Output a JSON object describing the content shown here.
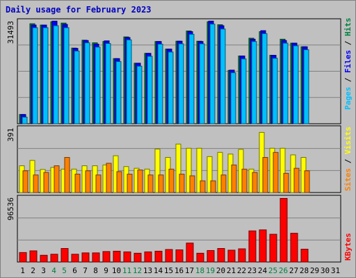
{
  "title": "Daily usage for February 2023",
  "chart_data": {
    "type": "bar",
    "days": [
      "1",
      "2",
      "3",
      "4",
      "5",
      "6",
      "7",
      "8",
      "9",
      "10",
      "11",
      "12",
      "13",
      "14",
      "15",
      "16",
      "17",
      "18",
      "19",
      "20",
      "21",
      "22",
      "23",
      "24",
      "25",
      "26",
      "27",
      "28",
      "29",
      "30",
      "31"
    ],
    "weekend_days": [
      "4",
      "5",
      "11",
      "12",
      "18",
      "19",
      "25",
      "26"
    ],
    "panels": [
      {
        "name": "hits-files-pages",
        "ymax_label": "31493",
        "ymax": 31493,
        "legend": [
          {
            "text": "Hits",
            "color": "#008040"
          },
          {
            "sep": "/"
          },
          {
            "text": "Files",
            "color": "#0000ff"
          },
          {
            "sep": "/"
          },
          {
            "text": "Pages",
            "color": "#00c0ff"
          }
        ],
        "series": [
          {
            "name": "Hits",
            "color": "#008040",
            "values": [
              2800,
              30400,
              30000,
              31000,
              30600,
              23000,
              25400,
              24600,
              25000,
              19800,
              26400,
              18400,
              21400,
              25000,
              22700,
              25100,
              28200,
              25100,
              31000,
              30100,
              16200,
              20600,
              26000,
              28000,
              20800,
              25700,
              24500,
              23400
            ]
          },
          {
            "name": "Files",
            "color": "#0000ff",
            "values": [
              2800,
              30000,
              30000,
              31200,
              30200,
              22900,
              25300,
              24200,
              25200,
              19800,
              26200,
              18400,
              21400,
              25000,
              22700,
              25100,
              28000,
              25000,
              31200,
              29800,
              16300,
              20600,
              25700,
              28300,
              20800,
              25300,
              24500,
              23400
            ]
          },
          {
            "name": "Pages",
            "color": "#00c0ff",
            "values": [
              2000,
              29200,
              29200,
              29800,
              29200,
              22100,
              24600,
              23300,
              24400,
              18900,
              25500,
              17500,
              20500,
              24200,
              21800,
              24300,
              27200,
              24300,
              30300,
              28800,
              15500,
              19700,
              25000,
              27400,
              19900,
              24500,
              23700,
              22500
            ]
          }
        ]
      },
      {
        "name": "visits-sites",
        "ymax_label": "391",
        "ymax": 391,
        "legend": [
          {
            "text": "Visits",
            "color": "#ffff00"
          },
          {
            "sep": "/"
          },
          {
            "text": "Sites",
            "color": "#ff8000"
          }
        ],
        "series": [
          {
            "name": "Visits",
            "color": "#ffff00",
            "values": [
              160,
              192,
              138,
              150,
              140,
              140,
              160,
              160,
              165,
              220,
              155,
              145,
              140,
              260,
              210,
              290,
              265,
              265,
              215,
              240,
              230,
              258,
              140,
              360,
              265,
              265,
              225,
              210
            ]
          },
          {
            "name": "Sites",
            "color": "#ff8000",
            "values": [
              130,
              105,
              120,
              160,
              210,
              110,
              130,
              105,
              175,
              125,
              110,
              135,
              105,
              105,
              140,
              110,
              100,
              70,
              70,
              105,
              165,
              140,
              120,
              210,
              240,
              115,
              145,
              130
            ]
          }
        ]
      },
      {
        "name": "kbytes",
        "ymax_label": "96536",
        "ymax": 96536,
        "legend": [
          {
            "text": "KBytes",
            "color": "#ff0000"
          }
        ],
        "series": [
          {
            "name": "KBytes",
            "color": "#ff0000",
            "values": [
              14000,
              16500,
              10000,
              11500,
              20000,
              11500,
              13500,
              13500,
              15500,
              16000,
              15000,
              13000,
              15000,
              16000,
              18500,
              18000,
              28000,
              13000,
              17000,
              20000,
              17500,
              19500,
              46000,
              47500,
              41000,
              94000,
              42500,
              19000
            ]
          }
        ]
      }
    ]
  }
}
